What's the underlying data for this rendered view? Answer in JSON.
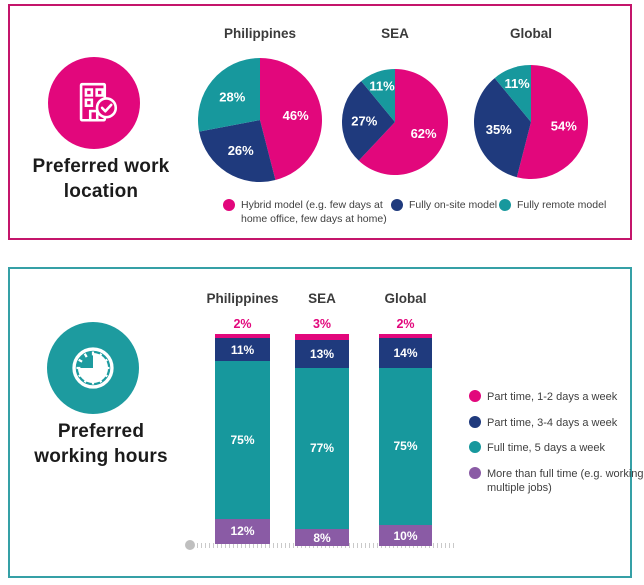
{
  "colors": {
    "pink": "#E2077C",
    "navy": "#1F3A7D",
    "teal": "#17989D",
    "purple": "#8A5BA5",
    "icon_teal": "#1D9B9F",
    "location_border": "#C4156B",
    "hours_border": "#35A0A6",
    "baseline": "#C9C9C9"
  },
  "location_panel": {
    "icon": "building-check-icon",
    "title_lines": {
      "0": "Preferred work",
      "1": "location"
    }
  },
  "hours_panel": {
    "icon": "clock-icon",
    "title_lines": {
      "0": "Preferred",
      "1": "working hours"
    }
  },
  "chart_data": [
    {
      "type": "pie",
      "title": "Preferred work location",
      "categories": [
        "Philippines",
        "SEA",
        "Global"
      ],
      "series": [
        {
          "name": "Hybrid model (e.g. few days at home office, few days at home)",
          "color": "#E2077C",
          "values": [
            46,
            62,
            54
          ]
        },
        {
          "name": "Fully on-site model",
          "color": "#1F3A7D",
          "values": [
            26,
            27,
            35
          ]
        },
        {
          "name": "Fully remote model",
          "color": "#17989D",
          "values": [
            28,
            11,
            11
          ]
        }
      ],
      "value_suffix": "%",
      "legend_position": "bottom"
    },
    {
      "type": "bar",
      "stacked": true,
      "title": "Preferred working hours",
      "categories": [
        "Philippines",
        "SEA",
        "Global"
      ],
      "series": [
        {
          "name": "Part time, 1-2 days a week",
          "color": "#E2077C",
          "values": [
            2,
            3,
            2
          ]
        },
        {
          "name": "Part time, 3-4 days a week",
          "color": "#1F3A7D",
          "values": [
            11,
            13,
            14
          ]
        },
        {
          "name": "Full time, 5 days a week",
          "color": "#17989D",
          "values": [
            75,
            77,
            75
          ]
        },
        {
          "name": "More than full time (e.g. working multiple jobs)",
          "color": "#8A5BA5",
          "values": [
            12,
            8,
            10
          ]
        }
      ],
      "value_suffix": "%",
      "ylim": [
        0,
        100
      ],
      "legend_position": "right"
    }
  ]
}
